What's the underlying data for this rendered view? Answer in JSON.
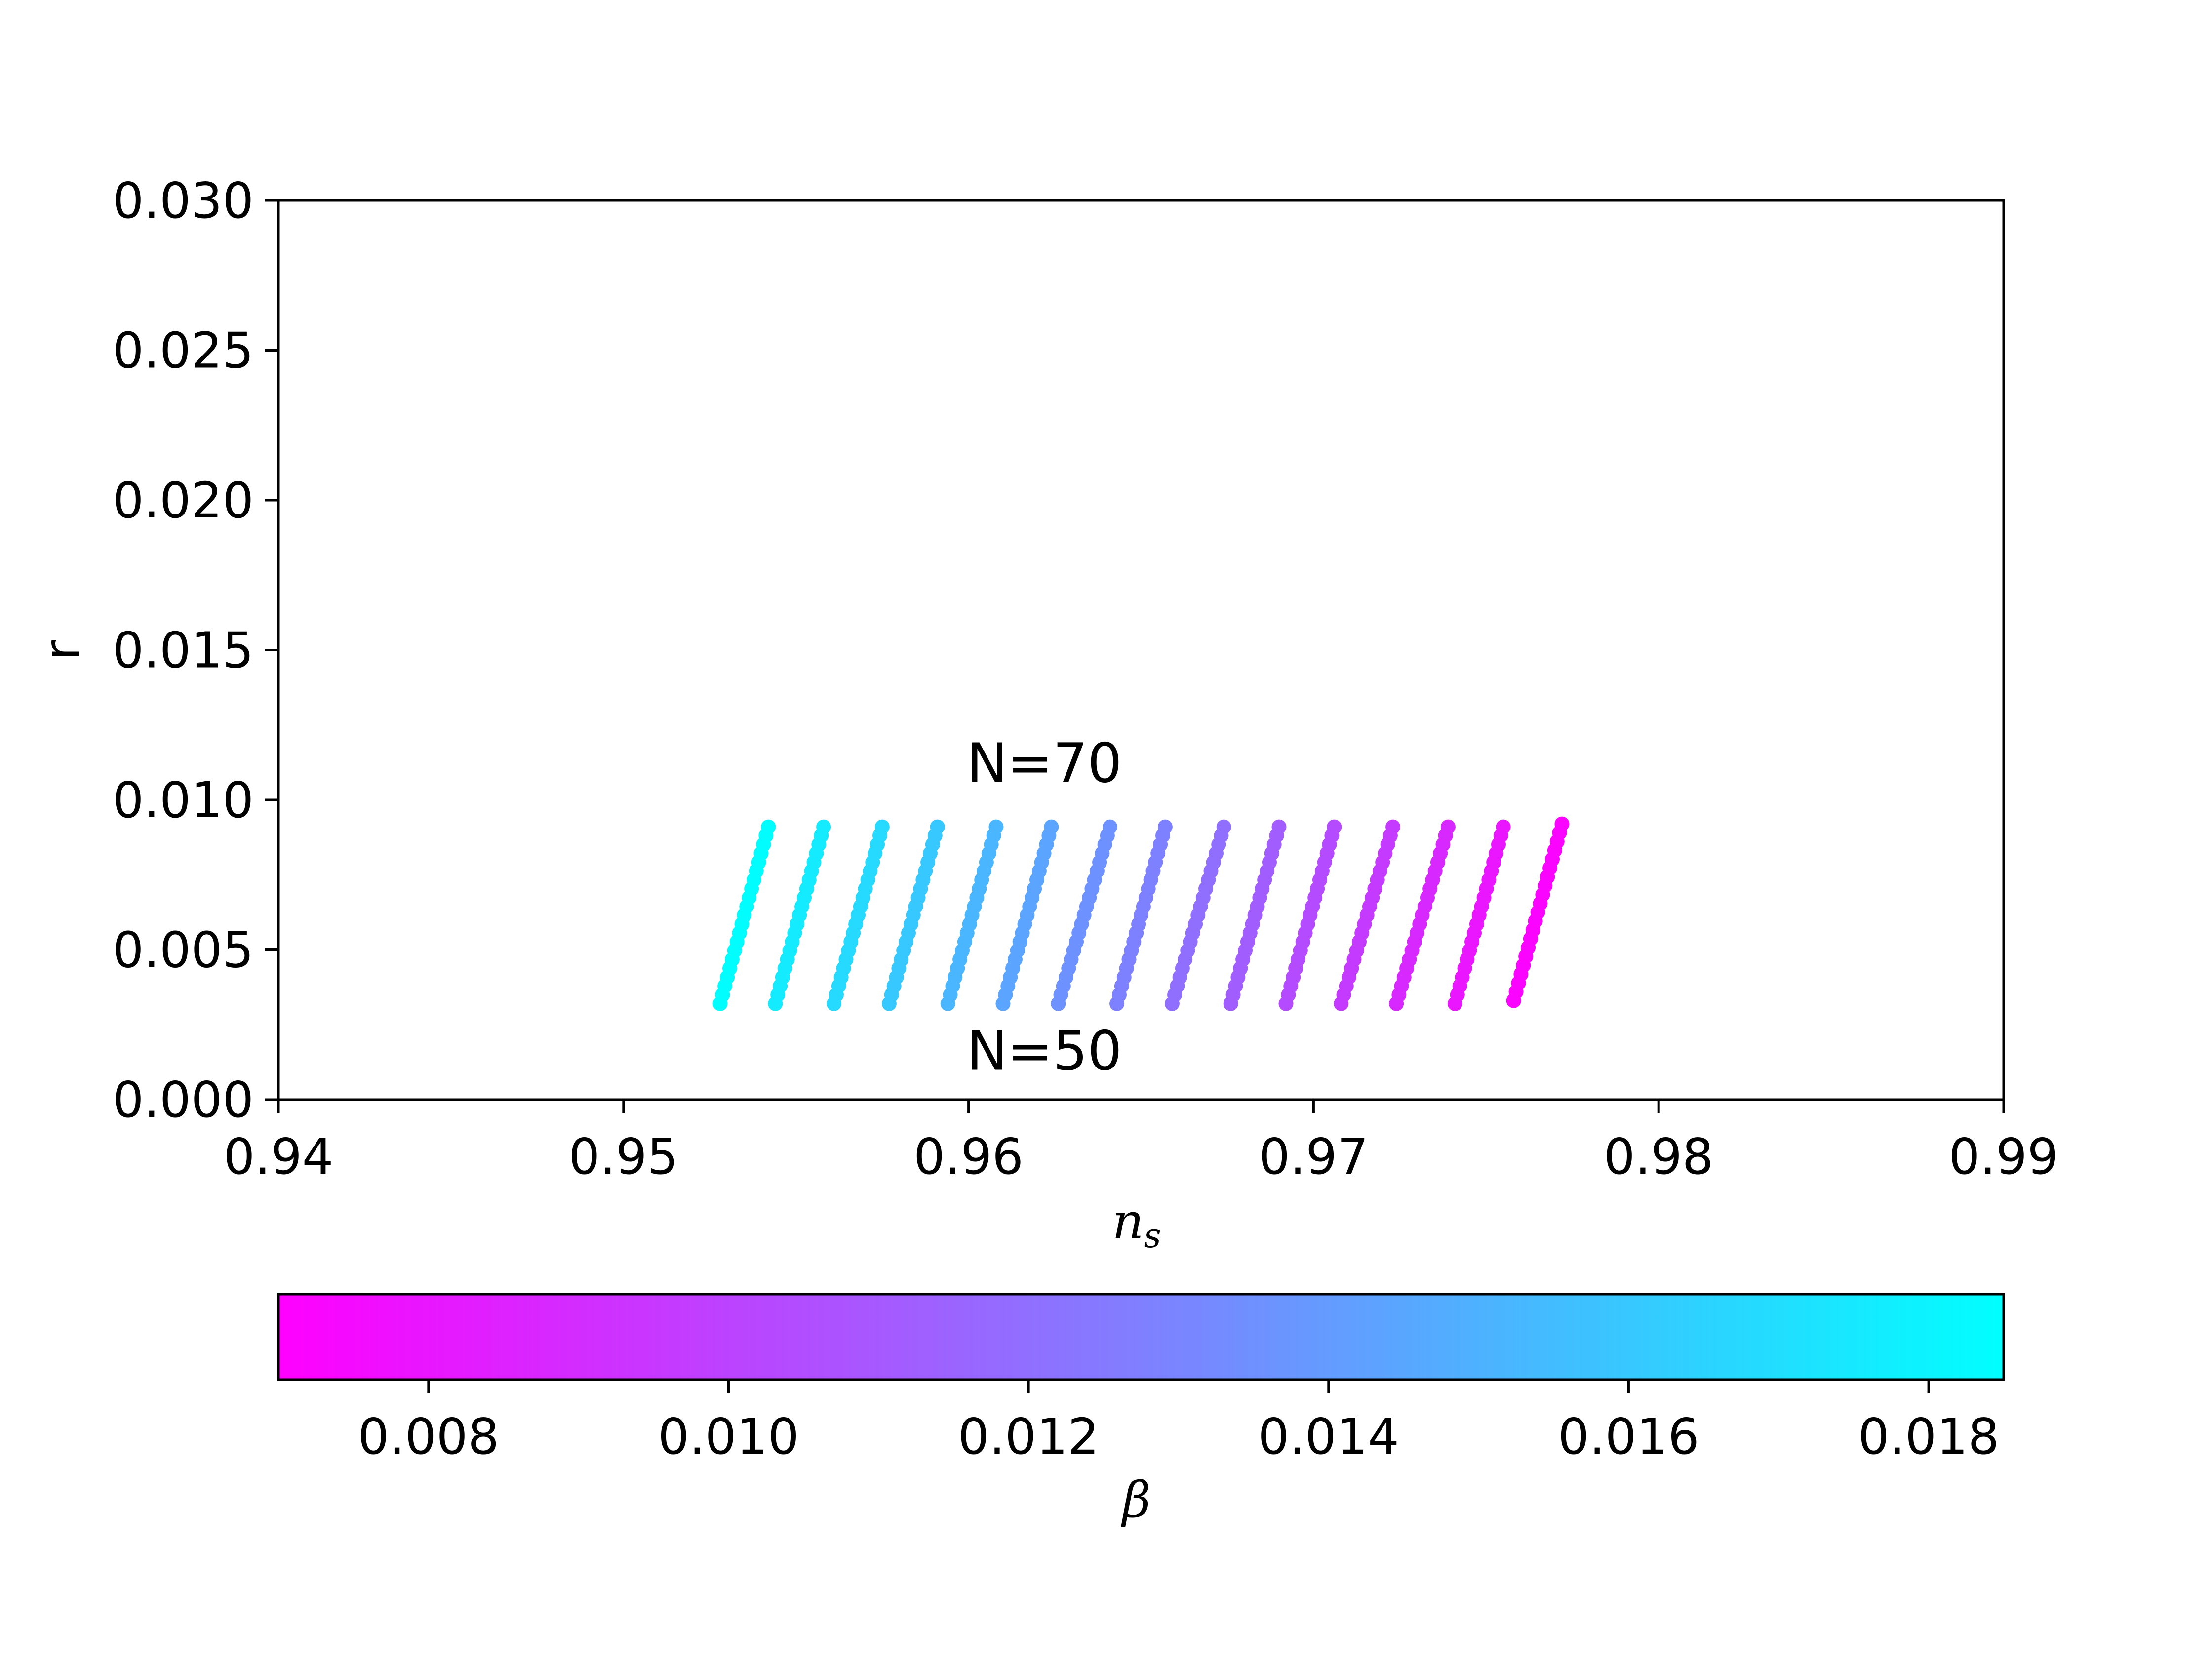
{
  "chart_data": {
    "type": "scatter",
    "xlabel": "n",
    "xlabel_sub": "s",
    "ylabel": "r",
    "xlim": [
      0.94,
      0.99
    ],
    "ylim": [
      0.0,
      0.03
    ],
    "xticks": [
      "0.94",
      "0.95",
      "0.96",
      "0.97",
      "0.98",
      "0.99"
    ],
    "yticks": [
      "0.000",
      "0.005",
      "0.010",
      "0.015",
      "0.020",
      "0.025",
      "0.030"
    ],
    "grid": false,
    "annotations": [
      {
        "text": "N=70",
        "x": 0.9622,
        "y": 0.0106
      },
      {
        "text": "N=50",
        "x": 0.9622,
        "y": 0.001
      }
    ],
    "colorbar": {
      "label": "β",
      "colormap": "cool (reversed)",
      "range": [
        0.007,
        0.0185
      ],
      "ticks": [
        "0.008",
        "0.010",
        "0.012",
        "0.014",
        "0.016",
        "0.018"
      ],
      "low_color": "#ff00ff",
      "high_color": "#00ffff",
      "orientation": "horizontal"
    },
    "series": [
      {
        "beta": 0.0184,
        "ns_start": 0.9528,
        "r_start": 0.0032,
        "ns_end": 0.9542,
        "r_end": 0.0091,
        "points": 21
      },
      {
        "beta": 0.0176,
        "ns_start": 0.9544,
        "r_start": 0.0032,
        "ns_end": 0.9558,
        "r_end": 0.0091,
        "points": 21
      },
      {
        "beta": 0.0168,
        "ns_start": 0.9561,
        "r_start": 0.0032,
        "ns_end": 0.9575,
        "r_end": 0.0091,
        "points": 21
      },
      {
        "beta": 0.016,
        "ns_start": 0.9577,
        "r_start": 0.0032,
        "ns_end": 0.9591,
        "r_end": 0.0091,
        "points": 21
      },
      {
        "beta": 0.0152,
        "ns_start": 0.9594,
        "r_start": 0.0032,
        "ns_end": 0.9608,
        "r_end": 0.0091,
        "points": 21
      },
      {
        "beta": 0.0144,
        "ns_start": 0.961,
        "r_start": 0.0032,
        "ns_end": 0.9624,
        "r_end": 0.0091,
        "points": 21
      },
      {
        "beta": 0.0136,
        "ns_start": 0.9626,
        "r_start": 0.0032,
        "ns_end": 0.9641,
        "r_end": 0.0091,
        "points": 21
      },
      {
        "beta": 0.0128,
        "ns_start": 0.9643,
        "r_start": 0.0032,
        "ns_end": 0.9657,
        "r_end": 0.0091,
        "points": 21
      },
      {
        "beta": 0.012,
        "ns_start": 0.9659,
        "r_start": 0.0032,
        "ns_end": 0.9674,
        "r_end": 0.0091,
        "points": 21
      },
      {
        "beta": 0.0112,
        "ns_start": 0.9676,
        "r_start": 0.0032,
        "ns_end": 0.969,
        "r_end": 0.0091,
        "points": 21
      },
      {
        "beta": 0.0104,
        "ns_start": 0.9692,
        "r_start": 0.0032,
        "ns_end": 0.9706,
        "r_end": 0.0091,
        "points": 21
      },
      {
        "beta": 0.0096,
        "ns_start": 0.9708,
        "r_start": 0.0032,
        "ns_end": 0.9723,
        "r_end": 0.0091,
        "points": 21
      },
      {
        "beta": 0.0088,
        "ns_start": 0.9724,
        "r_start": 0.0032,
        "ns_end": 0.9739,
        "r_end": 0.0091,
        "points": 21
      },
      {
        "beta": 0.008,
        "ns_start": 0.9741,
        "r_start": 0.0032,
        "ns_end": 0.9755,
        "r_end": 0.0091,
        "points": 21
      },
      {
        "beta": 0.0072,
        "ns_start": 0.9758,
        "r_start": 0.0033,
        "ns_end": 0.9772,
        "r_end": 0.0092,
        "points": 21
      }
    ]
  }
}
